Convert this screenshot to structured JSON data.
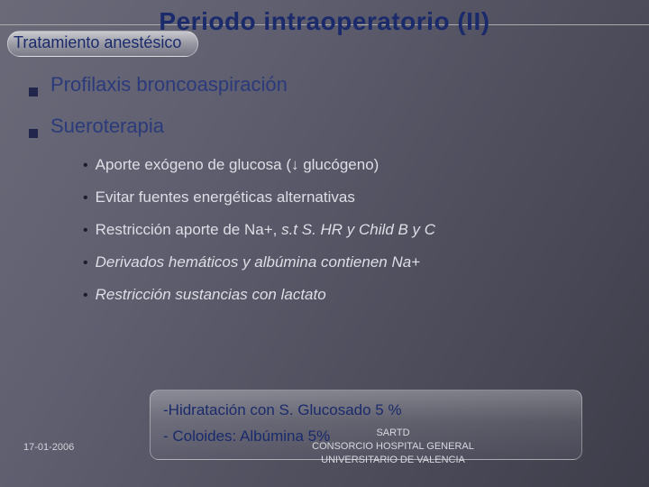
{
  "title": "Periodo intraoperatorio (II)",
  "subtitle": "Tratamiento anestésico",
  "items": [
    {
      "label": "Profilaxis broncoaspiración"
    },
    {
      "label": "Sueroterapia"
    }
  ],
  "subitems": [
    {
      "text": "Aporte exógeno de glucosa (↓ glucógeno)",
      "italic": false
    },
    {
      "text": "Evitar fuentes energéticas alternativas",
      "italic": false
    },
    {
      "text": "Restricción aporte de Na+, s.t S. HR y Child B y C",
      "italic": true,
      "prefix": "Restricción aporte de Na+, "
    },
    {
      "text": "Derivados hemáticos y albúmina contienen Na+",
      "italic": true
    },
    {
      "text": "Restricción sustancias con lactato",
      "italic": true
    }
  ],
  "box": {
    "line1": "-Hidratación con S. Glucosado 5 %",
    "line2": "- Coloides: Albúmina 5%"
  },
  "date": "17-01-2006",
  "org_line1": "SARTD",
  "org_line2": "CONSORCIO HOSPITAL GENERAL",
  "org_line3": "UNIVERSITARIO DE VALENCIA",
  "colors": {
    "title": "#1a2a6b",
    "bullet": "#23264c",
    "subtext": "#dedee6"
  }
}
